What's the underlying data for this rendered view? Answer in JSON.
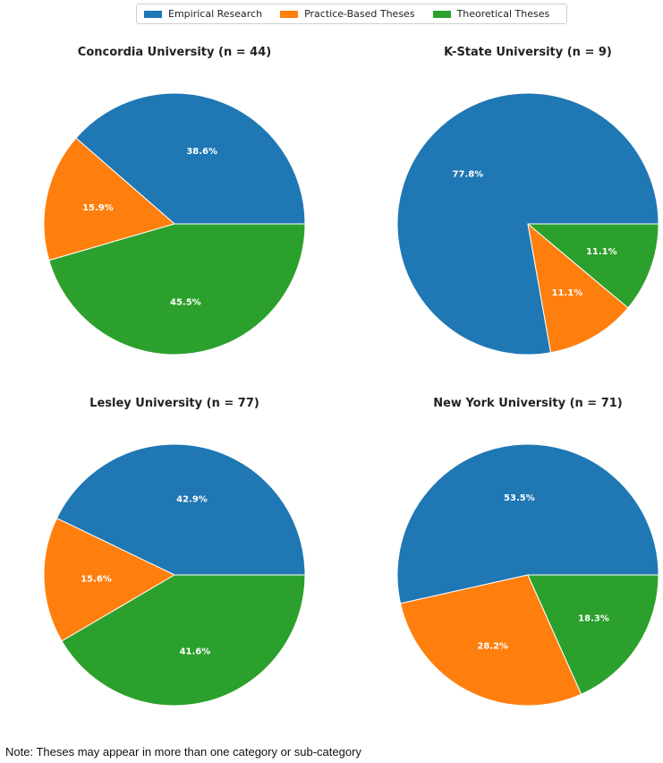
{
  "legend": {
    "entries": [
      {
        "label": "Empirical Research",
        "color": "#1f77b4"
      },
      {
        "label": "Practice-Based Theses",
        "color": "#ff7f0e"
      },
      {
        "label": "Theoretical Theses",
        "color": "#2ca02c"
      }
    ]
  },
  "note": "Note: Theses may appear in more than one category or sub-category",
  "chart_data": [
    {
      "type": "pie",
      "title": "Concordia University (n = 44)",
      "categories": [
        "Empirical Research",
        "Practice-Based Theses",
        "Theoretical Theses"
      ],
      "values": [
        38.6,
        15.9,
        45.5
      ],
      "labels": [
        "38.6%",
        "15.9%",
        "45.5%"
      ],
      "colors": [
        "#1f77b4",
        "#ff7f0e",
        "#2ca02c"
      ]
    },
    {
      "type": "pie",
      "title": "K-State University (n = 9)",
      "categories": [
        "Empirical Research",
        "Practice-Based Theses",
        "Theoretical Theses"
      ],
      "values": [
        77.8,
        11.1,
        11.1
      ],
      "labels": [
        "77.8%",
        "11.1%",
        "11.1%"
      ],
      "colors": [
        "#1f77b4",
        "#ff7f0e",
        "#2ca02c"
      ]
    },
    {
      "type": "pie",
      "title": "Lesley University (n = 77)",
      "categories": [
        "Empirical Research",
        "Practice-Based Theses",
        "Theoretical Theses"
      ],
      "values": [
        42.9,
        15.6,
        41.6
      ],
      "labels": [
        "42.9%",
        "15.6%",
        "41.6%"
      ],
      "colors": [
        "#1f77b4",
        "#ff7f0e",
        "#2ca02c"
      ]
    },
    {
      "type": "pie",
      "title": "New York University (n = 71)",
      "categories": [
        "Empirical Research",
        "Practice-Based Theses",
        "Theoretical Theses"
      ],
      "values": [
        53.5,
        28.2,
        18.3
      ],
      "labels": [
        "53.5%",
        "28.2%",
        "18.3%"
      ],
      "colors": [
        "#1f77b4",
        "#ff7f0e",
        "#2ca02c"
      ]
    }
  ]
}
